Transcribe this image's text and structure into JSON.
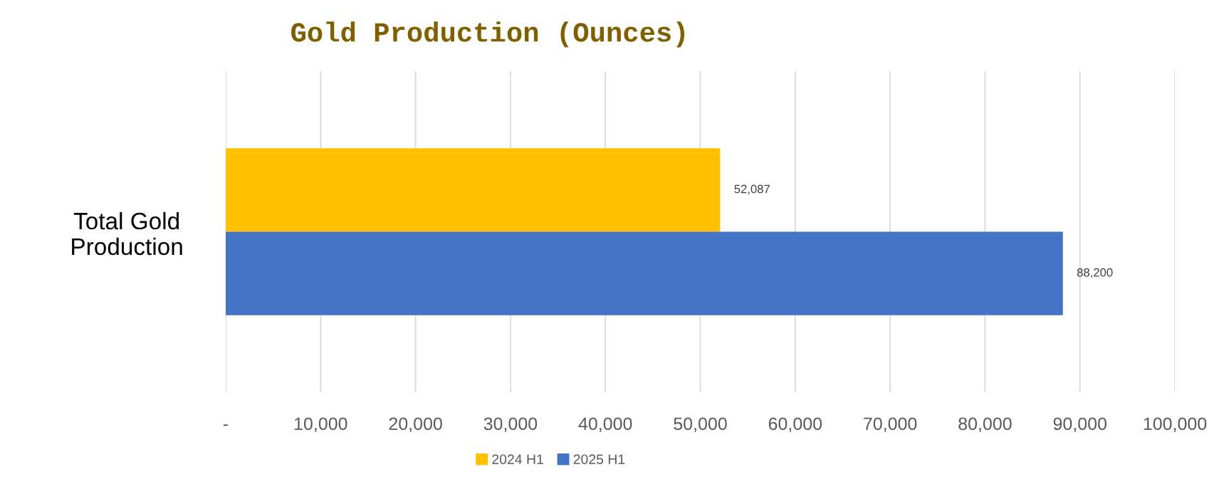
{
  "chart_data": {
    "type": "bar",
    "orientation": "horizontal",
    "title": "Gold Production (Ounces)",
    "categories": [
      "Total Gold\nProduction"
    ],
    "series": [
      {
        "name": "2024 H1",
        "color": "#ffc000",
        "values": [
          52087
        ],
        "value_labels": [
          "52,087"
        ]
      },
      {
        "name": "2025 H1",
        "color": "#4472c4",
        "values": [
          88200
        ],
        "value_labels": [
          "88,200"
        ]
      }
    ],
    "xlim": [
      0,
      100000
    ],
    "xticks": [
      {
        "value": 0,
        "label": "-"
      },
      {
        "value": 10000,
        "label": "10,000"
      },
      {
        "value": 20000,
        "label": "20,000"
      },
      {
        "value": 30000,
        "label": "30,000"
      },
      {
        "value": 40000,
        "label": "40,000"
      },
      {
        "value": 50000,
        "label": "50,000"
      },
      {
        "value": 60000,
        "label": "60,000"
      },
      {
        "value": 70000,
        "label": "70,000"
      },
      {
        "value": 80000,
        "label": "80,000"
      },
      {
        "value": 90000,
        "label": "90,000"
      },
      {
        "value": 100000,
        "label": "100,000"
      }
    ],
    "grid": "x",
    "legend": "bottom"
  }
}
